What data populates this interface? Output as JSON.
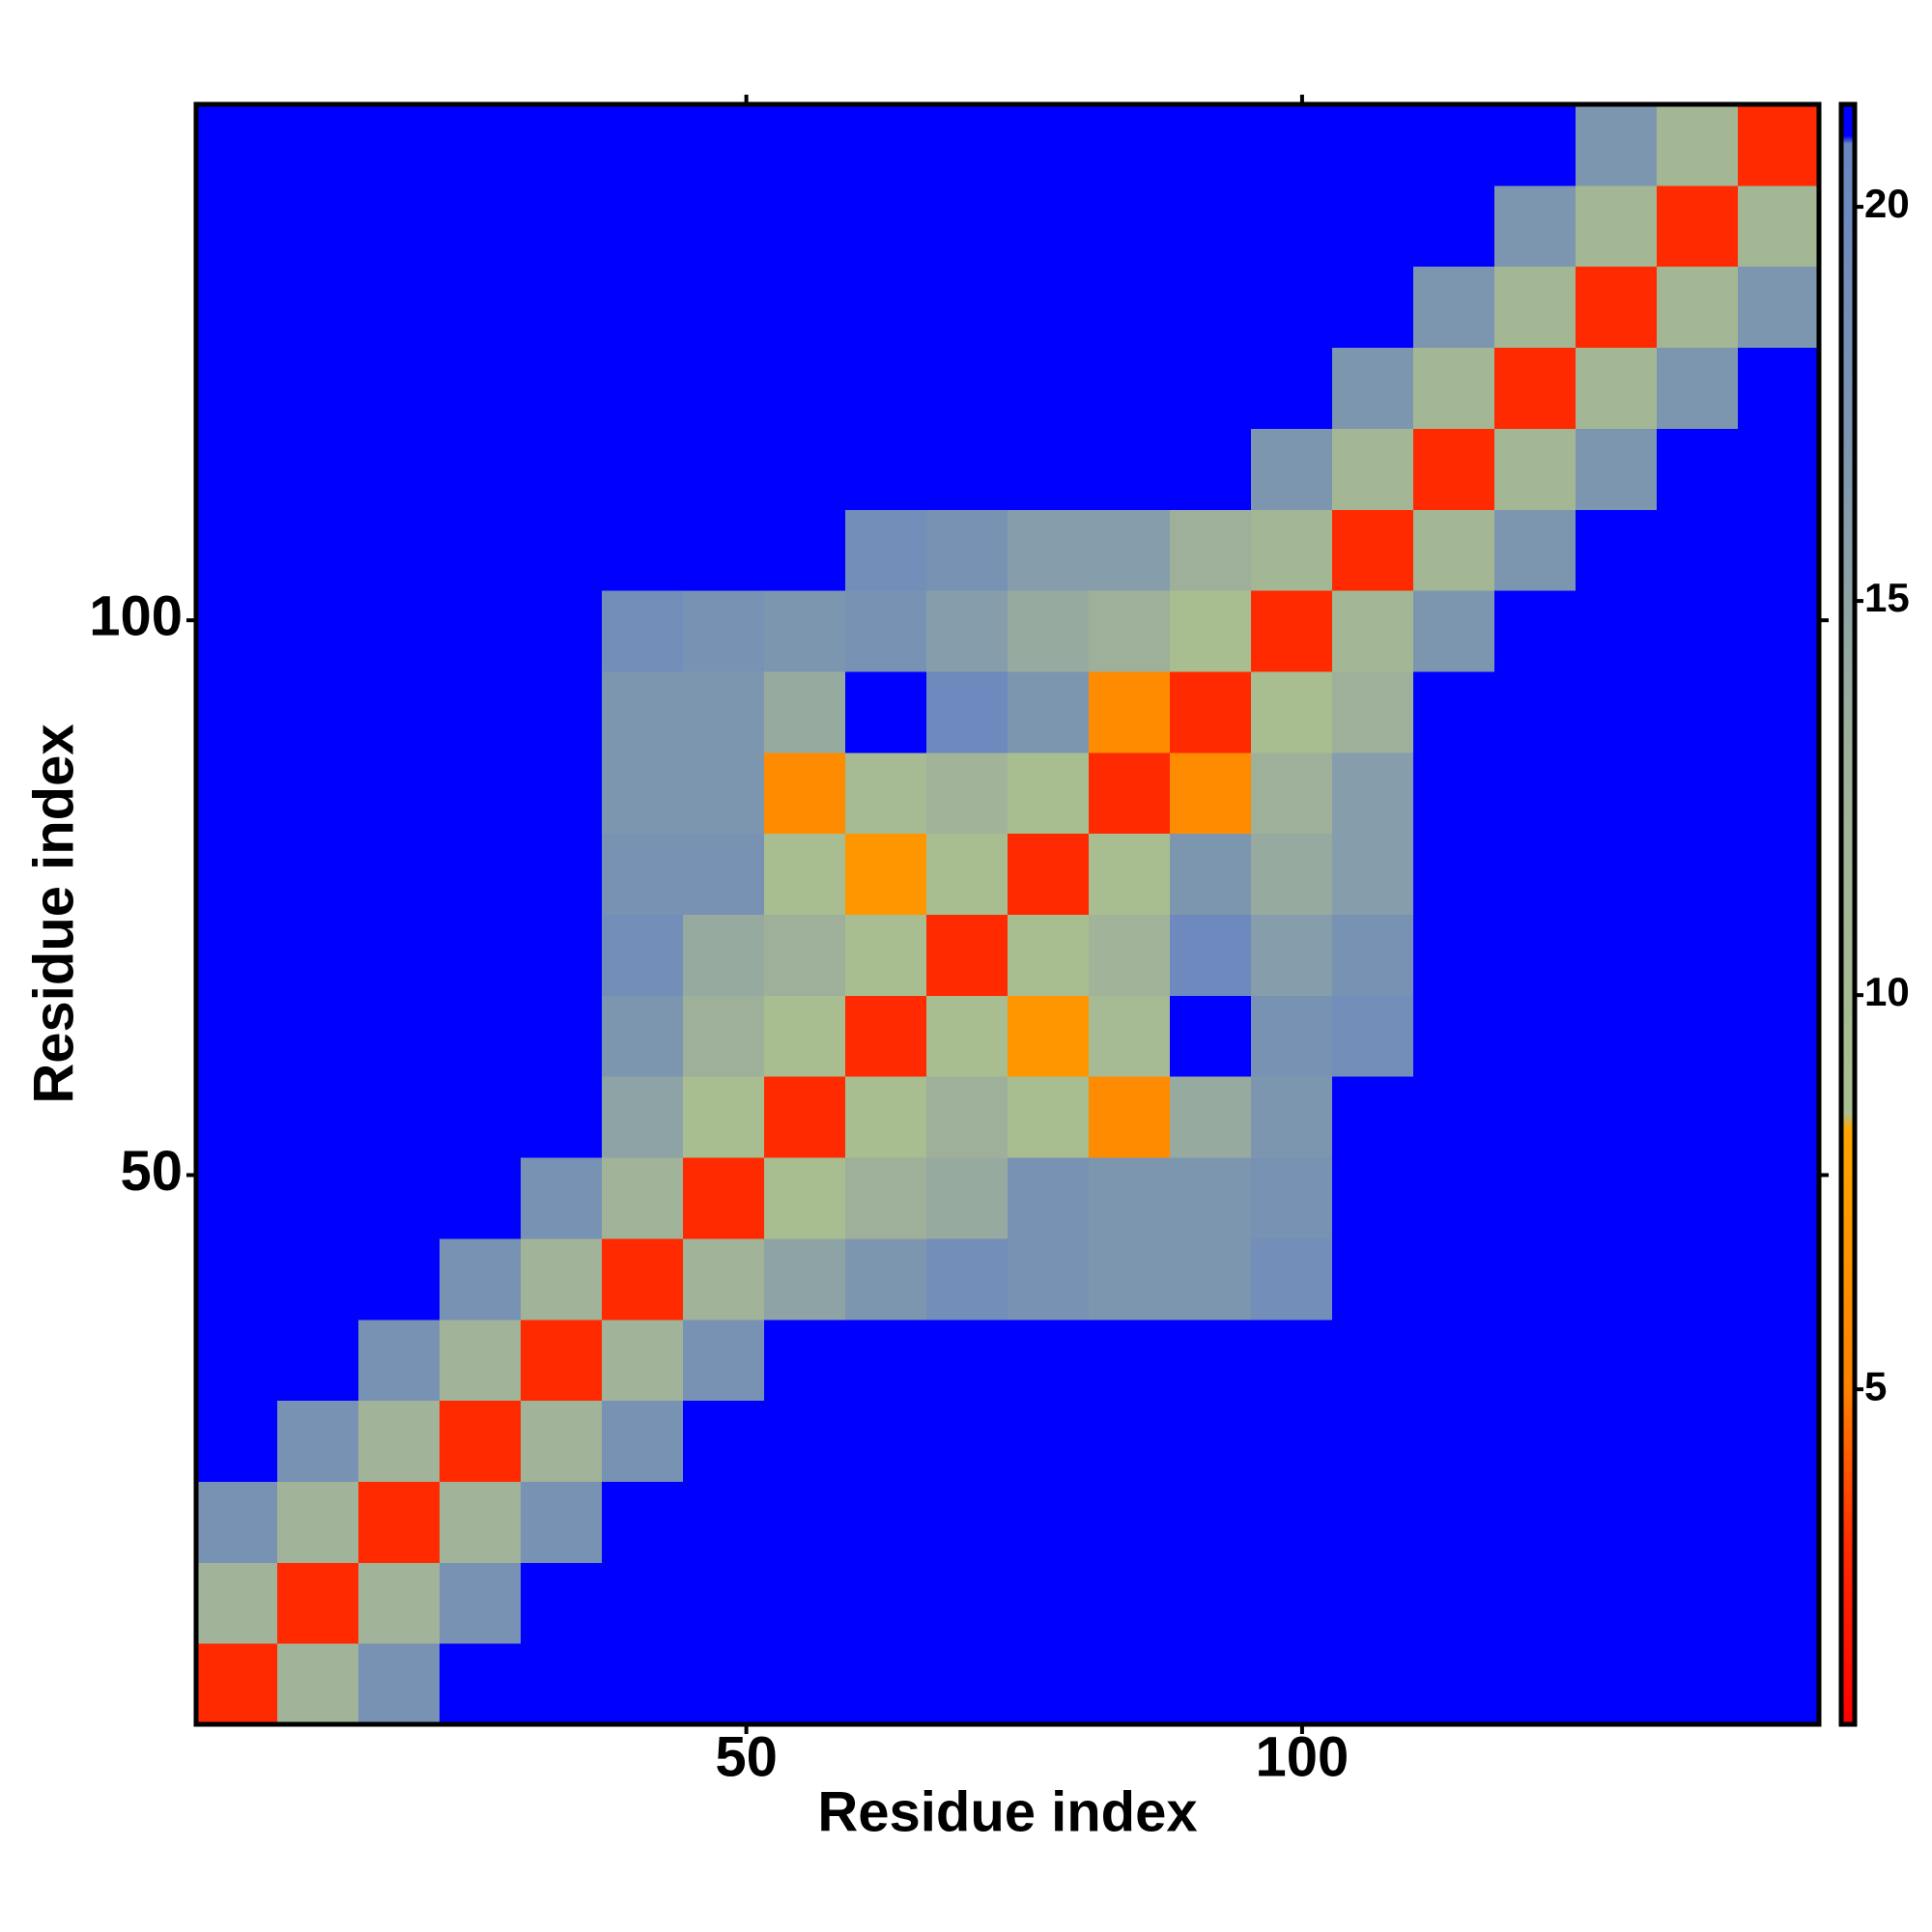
{
  "chart_data": {
    "type": "heatmap",
    "xlabel": "Residue index",
    "ylabel": "Residue index",
    "xlim": [
      0.5,
      146.5
    ],
    "ylim": [
      0.5,
      146.5
    ],
    "xticks": [
      50,
      100
    ],
    "yticks": [
      50,
      100
    ],
    "xbins": [
      0.5,
      7.8,
      15.1,
      22.4,
      29.7,
      37,
      44.3,
      51.6,
      58.9,
      66.2,
      73.5,
      80.8,
      88.1,
      95.4,
      102.7,
      110,
      117.3,
      124.6,
      131.9,
      139.2,
      146.5
    ],
    "ybins": [
      0.5,
      7.8,
      15.1,
      22.4,
      29.7,
      37,
      44.3,
      51.6,
      58.9,
      66.2,
      73.5,
      80.8,
      88.1,
      95.4,
      102.7,
      110,
      117.3,
      124.6,
      131.9,
      139.2,
      146.5
    ],
    "z": [
      [
        3,
        12,
        18,
        21,
        21,
        21,
        21,
        21,
        21,
        21,
        21,
        21,
        21,
        21,
        21,
        21,
        21,
        21,
        21,
        21
      ],
      [
        12,
        3,
        12,
        18,
        21,
        21,
        21,
        21,
        21,
        21,
        21,
        21,
        21,
        21,
        21,
        21,
        21,
        21,
        21,
        21
      ],
      [
        18,
        12,
        3,
        12,
        18,
        21,
        21,
        21,
        21,
        21,
        21,
        21,
        21,
        21,
        21,
        21,
        21,
        21,
        21,
        21
      ],
      [
        21,
        18,
        12,
        3,
        12,
        18,
        21,
        21,
        21,
        21,
        21,
        21,
        21,
        21,
        21,
        21,
        21,
        21,
        21,
        21
      ],
      [
        21,
        21,
        18,
        12,
        3,
        12,
        18,
        21,
        21,
        21,
        21,
        21,
        21,
        21,
        21,
        21,
        21,
        21,
        21,
        21
      ],
      [
        21,
        21,
        21,
        18,
        12,
        3,
        12,
        15,
        17,
        19,
        18,
        17,
        17,
        19,
        21,
        21,
        21,
        21,
        21,
        21
      ],
      [
        21,
        21,
        21,
        21,
        18,
        12,
        3,
        9,
        13,
        14,
        18,
        17,
        17,
        18,
        21,
        21,
        21,
        21,
        21,
        21
      ],
      [
        21,
        21,
        21,
        21,
        21,
        15,
        9,
        3,
        9,
        13,
        9,
        6,
        14,
        17,
        21,
        21,
        21,
        21,
        21,
        21
      ],
      [
        21,
        21,
        21,
        21,
        21,
        17,
        13,
        9,
        3,
        9,
        7,
        10,
        21,
        18,
        19,
        21,
        21,
        21,
        21,
        21
      ],
      [
        21,
        21,
        21,
        21,
        21,
        19,
        14,
        13,
        9,
        3,
        9,
        12,
        20,
        16,
        18,
        21,
        21,
        21,
        21,
        21
      ],
      [
        21,
        21,
        21,
        21,
        21,
        18,
        18,
        9,
        7,
        9,
        3,
        9,
        17,
        14,
        16,
        21,
        21,
        21,
        21,
        21
      ],
      [
        21,
        21,
        21,
        21,
        21,
        17,
        17,
        6,
        10,
        12,
        9,
        3,
        6,
        13,
        16,
        21,
        21,
        21,
        21,
        21
      ],
      [
        21,
        21,
        21,
        21,
        21,
        17,
        17,
        14,
        21,
        20,
        17,
        6,
        3,
        9,
        13,
        21,
        21,
        21,
        21,
        21
      ],
      [
        21,
        21,
        21,
        21,
        21,
        19,
        18,
        17,
        18,
        16,
        14,
        13,
        9,
        3,
        11,
        17,
        21,
        21,
        21,
        21
      ],
      [
        21,
        21,
        21,
        21,
        21,
        21,
        21,
        21,
        19,
        18,
        16,
        16,
        13,
        11,
        3,
        11,
        17,
        21,
        21,
        21
      ],
      [
        21,
        21,
        21,
        21,
        21,
        21,
        21,
        21,
        21,
        21,
        21,
        21,
        21,
        17,
        11,
        3,
        11,
        17,
        21,
        21
      ],
      [
        21,
        21,
        21,
        21,
        21,
        21,
        21,
        21,
        21,
        21,
        21,
        21,
        21,
        21,
        17,
        11,
        3,
        11,
        17,
        21
      ],
      [
        21,
        21,
        21,
        21,
        21,
        21,
        21,
        21,
        21,
        21,
        21,
        21,
        21,
        21,
        21,
        17,
        11,
        3,
        11,
        17
      ],
      [
        21,
        21,
        21,
        21,
        21,
        21,
        21,
        21,
        21,
        21,
        21,
        21,
        21,
        21,
        21,
        21,
        17,
        11,
        3,
        11
      ],
      [
        21,
        21,
        21,
        21,
        21,
        21,
        21,
        21,
        21,
        21,
        21,
        21,
        21,
        21,
        21,
        21,
        21,
        17,
        11,
        3
      ]
    ],
    "zlim": [
      0.75,
      21.3
    ],
    "zticks": [
      5,
      10,
      15,
      20
    ],
    "colorscale": [
      [
        0.75,
        "#ff0000"
      ],
      [
        3,
        "#ff2a00"
      ],
      [
        5,
        "#ff8000"
      ],
      [
        8.3,
        "#ffa500"
      ],
      [
        8.5,
        "#a9bf8f"
      ],
      [
        13,
        "#9fb09a"
      ],
      [
        17,
        "#7d96b0"
      ],
      [
        20.8,
        "#6a86c0"
      ],
      [
        20.9,
        "#0000ff"
      ],
      [
        21.3,
        "#0000ff"
      ]
    ]
  }
}
